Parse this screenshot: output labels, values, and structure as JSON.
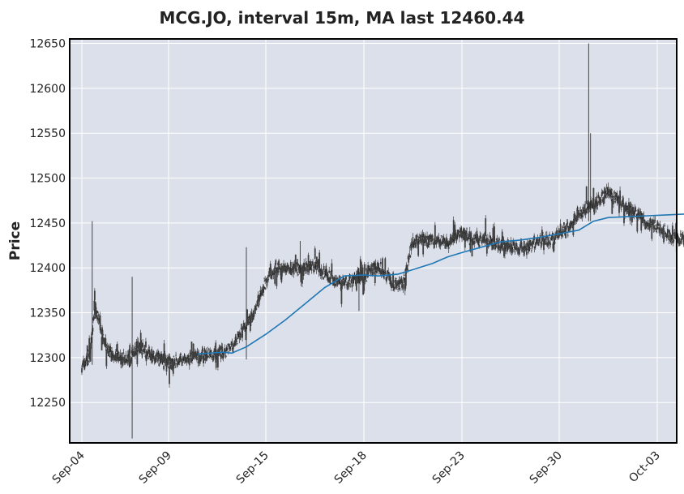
{
  "chart_data": {
    "type": "candlestick",
    "title": "MCG.JO, interval 15m, MA last 12460.44",
    "ylabel": "Price",
    "xlabel": "",
    "ylim": [
      12205,
      12655
    ],
    "yticks": [
      12250,
      12300,
      12350,
      12400,
      12450,
      12500,
      12550,
      12600,
      12650
    ],
    "xticks": [
      "Sep-04",
      "Sep-09",
      "Sep-15",
      "Sep-18",
      "Sep-23",
      "Sep-30",
      "Oct-03"
    ],
    "grid": true,
    "colors": {
      "plot_background": "#dce0ea",
      "grid": "#ffffff",
      "candle": "#404040",
      "wick": "#202020",
      "moving_average": "#1f77b4",
      "frame": "#000000"
    },
    "price_path": [
      [
        0,
        12290
      ],
      [
        0.05,
        12295
      ],
      [
        0.1,
        12308
      ],
      [
        0.15,
        12360
      ],
      [
        0.2,
        12340
      ],
      [
        0.25,
        12320
      ],
      [
        0.3,
        12306
      ],
      [
        0.45,
        12300
      ],
      [
        0.55,
        12296
      ],
      [
        0.58,
        12305
      ],
      [
        0.65,
        12312
      ],
      [
        0.75,
        12305
      ],
      [
        0.85,
        12300
      ],
      [
        0.95,
        12296
      ],
      [
        1.0,
        12294
      ],
      [
        1.2,
        12298
      ],
      [
        1.4,
        12304
      ],
      [
        1.55,
        12305
      ],
      [
        1.7,
        12318
      ],
      [
        1.9,
        12355
      ],
      [
        2.0,
        12385
      ],
      [
        2.1,
        12400
      ],
      [
        2.3,
        12400
      ],
      [
        2.5,
        12402
      ],
      [
        2.7,
        12386
      ],
      [
        2.8,
        12384
      ],
      [
        2.95,
        12388
      ],
      [
        3.0,
        12390
      ],
      [
        3.1,
        12400
      ],
      [
        3.2,
        12397
      ],
      [
        3.3,
        12380
      ],
      [
        3.4,
        12383
      ],
      [
        3.5,
        12430
      ],
      [
        3.65,
        12433
      ],
      [
        3.75,
        12430
      ],
      [
        3.85,
        12425
      ],
      [
        4.0,
        12440
      ],
      [
        4.1,
        12433
      ],
      [
        4.3,
        12428
      ],
      [
        4.5,
        12423
      ],
      [
        4.65,
        12421
      ],
      [
        4.8,
        12430
      ],
      [
        4.95,
        12434
      ],
      [
        5.0,
        12440
      ],
      [
        5.1,
        12445
      ],
      [
        5.2,
        12460
      ],
      [
        5.35,
        12470
      ],
      [
        5.5,
        12485
      ],
      [
        5.65,
        12470
      ],
      [
        5.8,
        12460
      ],
      [
        5.9,
        12450
      ],
      [
        6.0,
        12445
      ],
      [
        6.2,
        12432
      ],
      [
        6.4,
        12428
      ],
      [
        6.5,
        12430
      ],
      [
        6.65,
        12435
      ],
      [
        6.78,
        12438
      ]
    ],
    "spikes": [
      {
        "x": 0.12,
        "high": 12452,
        "low": 12292
      },
      {
        "x": 0.58,
        "high": 12390,
        "low": 12210
      },
      {
        "x": 1.8,
        "high": 12423,
        "low": 12298
      },
      {
        "x": 2.35,
        "high": 12430,
        "low": 12396
      },
      {
        "x": 2.95,
        "high": 12400,
        "low": 12352
      },
      {
        "x": 5.3,
        "high": 12650,
        "low": 12452
      },
      {
        "x": 5.32,
        "high": 12550,
        "low": 12452
      }
    ],
    "moving_average": [
      [
        1.3,
        12304
      ],
      [
        1.55,
        12306
      ],
      [
        1.65,
        12305
      ],
      [
        1.8,
        12312
      ],
      [
        2.0,
        12326
      ],
      [
        2.2,
        12342
      ],
      [
        2.4,
        12360
      ],
      [
        2.6,
        12378
      ],
      [
        2.8,
        12391
      ],
      [
        3.0,
        12392
      ],
      [
        3.15,
        12391
      ],
      [
        3.35,
        12393
      ],
      [
        3.5,
        12398
      ],
      [
        3.7,
        12405
      ],
      [
        3.85,
        12412
      ],
      [
        4.0,
        12417
      ],
      [
        4.2,
        12423
      ],
      [
        4.4,
        12429
      ],
      [
        4.6,
        12431
      ],
      [
        4.8,
        12434
      ],
      [
        5.0,
        12438
      ],
      [
        5.2,
        12442
      ],
      [
        5.35,
        12452
      ],
      [
        5.5,
        12456
      ],
      [
        5.7,
        12457
      ],
      [
        5.9,
        12458
      ],
      [
        6.1,
        12459
      ],
      [
        6.3,
        12460
      ],
      [
        6.5,
        12460
      ],
      [
        6.7,
        12460.44
      ]
    ]
  }
}
